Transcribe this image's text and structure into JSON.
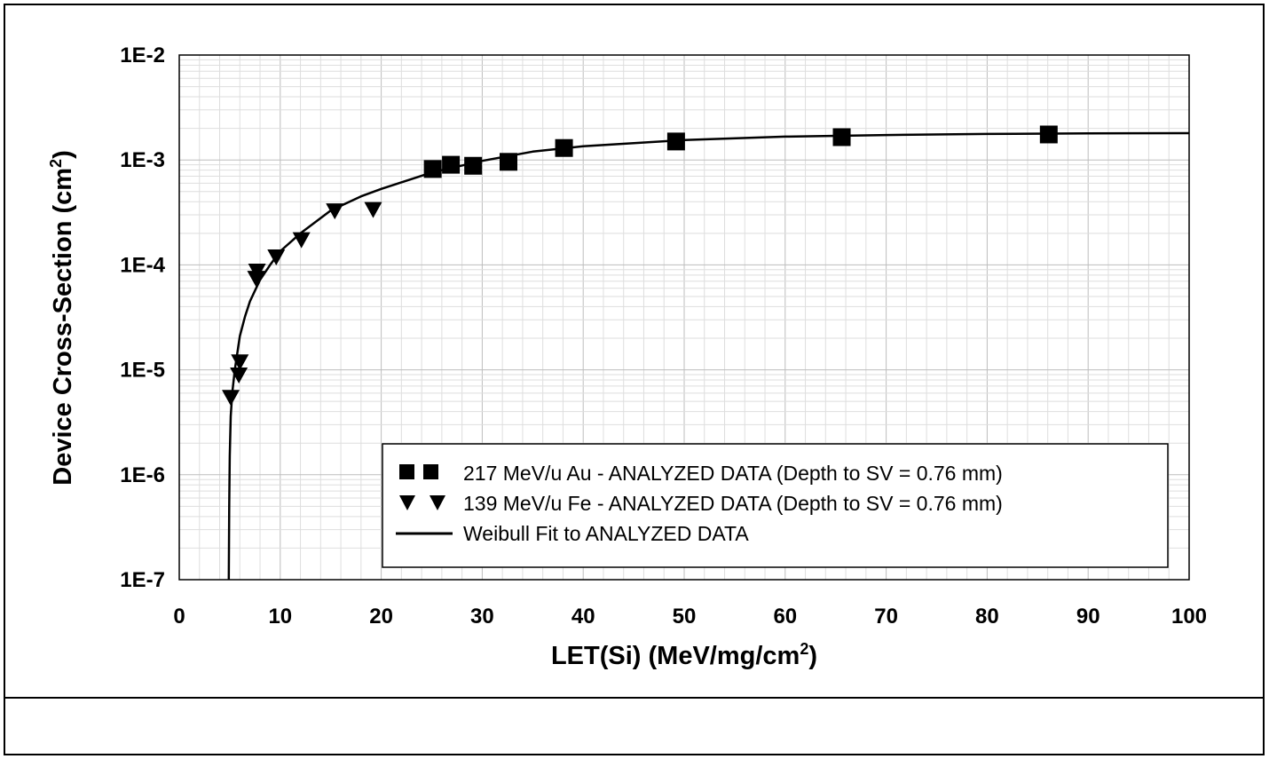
{
  "chart_data": {
    "type": "scatter",
    "xlabel": "LET(Si) (MeV/mg/cm",
    "xlabel_sup": "2",
    "xlabel_end": ")",
    "ylabel": "Device Cross-Section (cm",
    "ylabel_sup": "2",
    "ylabel_end": ")",
    "xlim": [
      0,
      100
    ],
    "ylim": [
      1e-07,
      0.01
    ],
    "y_scale": "log",
    "grid": true,
    "legend_position": "bottom-right",
    "x_ticks": [
      0,
      10,
      20,
      30,
      40,
      50,
      60,
      70,
      80,
      90,
      100
    ],
    "x_tick_labels": [
      "0",
      "10",
      "20",
      "30",
      "40",
      "50",
      "60",
      "70",
      "80",
      "90",
      "100"
    ],
    "y_ticks": [
      1e-07,
      1e-06,
      1e-05,
      0.0001,
      0.001,
      0.01
    ],
    "y_tick_labels": [
      "1E-7",
      "1E-6",
      "1E-5",
      "1E-4",
      "1E-3",
      "1E-2"
    ],
    "series": [
      {
        "name": "217 MeV/u Au - ANALYZED  DATA (Depth to SV = 0.76 mm)",
        "marker": "square",
        "legend_symbol": "■ ■",
        "x": [
          25.1,
          26.9,
          29.1,
          32.6,
          38.1,
          49.2,
          65.6,
          86.1
        ],
        "y": [
          0.00082,
          0.0009,
          0.00088,
          0.00096,
          0.0013,
          0.0015,
          0.00165,
          0.00175
        ]
      },
      {
        "name": "139 MeV/u Fe - ANALYZED DATA (Depth to SV = 0.76 mm)",
        "marker": "triangle-down",
        "legend_symbol": "▼ ▼",
        "x": [
          5.1,
          5.9,
          6.0,
          7.6,
          7.7,
          9.6,
          12.1,
          15.4,
          19.2
        ],
        "y": [
          5.5e-06,
          9e-06,
          1.2e-05,
          7.5e-05,
          8.8e-05,
          0.00012,
          0.000175,
          0.00033,
          0.00034
        ]
      },
      {
        "name": "Weibull Fit to ANALYZED DATA",
        "type": "line",
        "x": [
          4.9,
          4.95,
          5.0,
          5.1,
          5.25,
          5.5,
          6.0,
          6.5,
          7.0,
          8.0,
          9.0,
          10.0,
          12.0,
          15.0,
          18.0,
          20.0,
          25.0,
          30.0,
          35.0,
          40.0,
          50.0,
          60.0,
          70.0,
          80.0,
          90.0,
          100.0
        ],
        "y": [
          1e-07,
          5e-07,
          1.5e-06,
          3.6e-06,
          6e-06,
          1e-05,
          2.1e-05,
          3.2e-05,
          4.5e-05,
          7.2e-05,
          0.0001,
          0.000135,
          0.0002,
          0.00033,
          0.00045,
          0.00053,
          0.00076,
          0.00098,
          0.0012,
          0.00135,
          0.00155,
          0.00167,
          0.00173,
          0.00177,
          0.00179,
          0.0018
        ]
      }
    ]
  }
}
